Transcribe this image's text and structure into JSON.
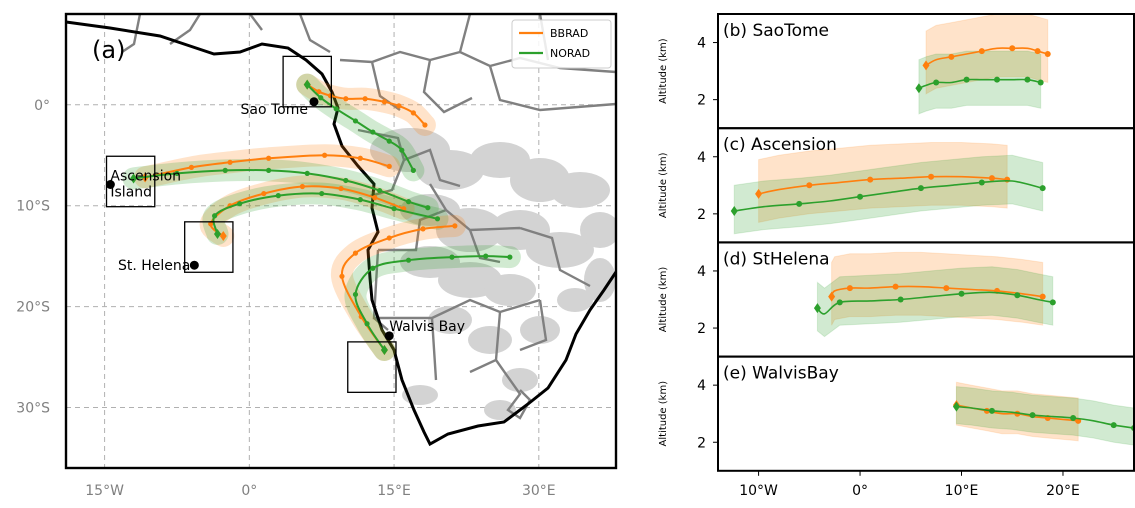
{
  "colors": {
    "bbrad": "#ff7f0e",
    "norad": "#2ca02c",
    "land": "#ffffff",
    "coast": "#000000",
    "border": "#808080",
    "cloud": "#d3d3d3",
    "grid": "#b0b0b0",
    "map_tick_label": "#808080"
  },
  "chart_data": [
    {
      "type": "map",
      "panel_label": "(a)",
      "x_ticks": [
        -15,
        0,
        15,
        30
      ],
      "x_tick_labels": [
        "15°W",
        "0°",
        "15°E",
        "30°E"
      ],
      "y_ticks": [
        0,
        -10,
        -20,
        -30
      ],
      "y_tick_labels": [
        "0°",
        "10°S",
        "20°S",
        "30°S"
      ],
      "xlim": [
        -19,
        38
      ],
      "ylim": [
        -36,
        9
      ],
      "grid": true,
      "legend": {
        "position": "top-right",
        "entries": [
          {
            "name": "BBRAD",
            "color": "#ff7f0e"
          },
          {
            "name": "NORAD",
            "color": "#2ca02c"
          }
        ]
      },
      "sites": [
        {
          "name": "Sao Tome",
          "lon": 6.7,
          "lat": 0.3
        },
        {
          "name": "Ascension Island",
          "lon": -14.4,
          "lat": -7.9
        },
        {
          "name": "St. Helena",
          "lon": -5.7,
          "lat": -15.9
        },
        {
          "name": "Walvis Bay",
          "lon": 14.5,
          "lat": -22.9
        }
      ],
      "boxes": [
        {
          "lon": [
            3.5,
            8.5
          ],
          "lat": [
            -0.2,
            4.8
          ]
        },
        {
          "lon": [
            -14.8,
            -9.8
          ],
          "lat": [
            -10.1,
            -5.1
          ]
        },
        {
          "lon": [
            -6.7,
            -1.7
          ],
          "lat": [
            -16.6,
            -11.6
          ]
        },
        {
          "lon": [
            10.2,
            15.2
          ],
          "lat": [
            -28.5,
            -23.5
          ]
        }
      ],
      "series": [
        {
          "name": "BBRAD",
          "site": "Sao Tome",
          "points": [
            [
              6.0,
              2.0
            ],
            [
              7.2,
              1.3
            ],
            [
              8.4,
              0.9
            ],
            [
              10.0,
              0.6
            ],
            [
              12.0,
              0.6
            ],
            [
              14.0,
              0.3
            ],
            [
              15.5,
              -0.1
            ],
            [
              17.0,
              -0.8
            ],
            [
              18.2,
              -2.0
            ]
          ]
        },
        {
          "name": "NORAD",
          "site": "Sao Tome",
          "points": [
            [
              6.0,
              2.0
            ],
            [
              7.4,
              0.7
            ],
            [
              9.0,
              -0.4
            ],
            [
              11.0,
              -1.6
            ],
            [
              12.8,
              -2.7
            ],
            [
              14.5,
              -3.6
            ],
            [
              15.8,
              -4.5
            ],
            [
              17.0,
              -6.5
            ]
          ]
        },
        {
          "name": "BBRAD",
          "site": "Ascension",
          "points": [
            [
              -10.8,
              -7.2
            ],
            [
              -6.0,
              -6.2
            ],
            [
              -2.0,
              -5.7
            ],
            [
              2.0,
              -5.3
            ],
            [
              7.8,
              -5.0
            ],
            [
              11.5,
              -5.3
            ],
            [
              14.5,
              -6.1
            ]
          ]
        },
        {
          "name": "NORAD",
          "site": "Ascension",
          "points": [
            [
              -12.0,
              -7.3
            ],
            [
              -7.5,
              -6.8
            ],
            [
              -2.5,
              -6.5
            ],
            [
              2.0,
              -6.5
            ],
            [
              6.0,
              -6.8
            ],
            [
              10.0,
              -7.5
            ],
            [
              13.5,
              -8.5
            ],
            [
              16.5,
              -9.6
            ],
            [
              18.5,
              -10.2
            ]
          ]
        },
        {
          "name": "BBRAD",
          "site": "St. Helena",
          "points": [
            [
              -2.7,
              -13.0
            ],
            [
              -4.0,
              -11.8
            ],
            [
              -2.0,
              -10.0
            ],
            [
              1.5,
              -8.8
            ],
            [
              5.5,
              -8.1
            ],
            [
              9.5,
              -8.3
            ],
            [
              13.0,
              -9.2
            ],
            [
              16.0,
              -10.3
            ]
          ]
        },
        {
          "name": "NORAD",
          "site": "St. Helena",
          "points": [
            [
              -3.3,
              -12.8
            ],
            [
              -3.6,
              -11.0
            ],
            [
              -1.0,
              -9.8
            ],
            [
              3.0,
              -9.0
            ],
            [
              7.5,
              -8.8
            ],
            [
              11.5,
              -9.4
            ],
            [
              15.0,
              -10.3
            ],
            [
              19.5,
              -11.3
            ]
          ]
        },
        {
          "name": "BBRAD",
          "site": "Walvis Bay",
          "points": [
            [
              14.0,
              -24.3
            ],
            [
              11.6,
              -21.0
            ],
            [
              9.6,
              -17.0
            ],
            [
              11.0,
              -14.7
            ],
            [
              14.5,
              -13.2
            ],
            [
              18.0,
              -12.3
            ],
            [
              21.3,
              -12.0
            ]
          ]
        },
        {
          "name": "NORAD",
          "site": "Walvis Bay",
          "points": [
            [
              14.0,
              -24.3
            ],
            [
              12.2,
              -21.7
            ],
            [
              11.0,
              -18.8
            ],
            [
              12.8,
              -16.2
            ],
            [
              16.5,
              -15.4
            ],
            [
              21.0,
              -15.1
            ],
            [
              24.5,
              -15.0
            ],
            [
              27.0,
              -15.1
            ]
          ]
        }
      ]
    },
    {
      "type": "line",
      "panel_label": "(b) SaoTome",
      "ylabel": "Altitude (km)",
      "ylim": [
        1,
        5
      ],
      "y_ticks": [
        2,
        4
      ],
      "xlim": [
        -14,
        27
      ],
      "series": [
        {
          "name": "BBRAD",
          "x": [
            6.5,
            7.5,
            9.0,
            10.5,
            12.0,
            13.5,
            15.0,
            16.5,
            17.5,
            18.5
          ],
          "y": [
            3.2,
            3.4,
            3.5,
            3.6,
            3.7,
            3.8,
            3.8,
            3.8,
            3.7,
            3.6
          ],
          "band": [
            1.2,
            1.0
          ]
        },
        {
          "name": "NORAD",
          "x": [
            5.8,
            6.5,
            7.5,
            9.0,
            10.5,
            12.0,
            13.5,
            15.0,
            16.5,
            17.8
          ],
          "y": [
            2.4,
            2.5,
            2.6,
            2.6,
            2.7,
            2.7,
            2.7,
            2.7,
            2.7,
            2.6
          ],
          "band": [
            1.0,
            0.9
          ]
        }
      ]
    },
    {
      "type": "line",
      "panel_label": "(c) Ascension",
      "ylabel": "Altitude (km)",
      "ylim": [
        1,
        5
      ],
      "y_ticks": [
        2,
        4
      ],
      "xlim": [
        -14,
        27
      ],
      "series": [
        {
          "name": "BBRAD",
          "x": [
            -10,
            -8,
            -5,
            -2,
            1,
            4,
            7,
            10,
            13,
            14.5
          ],
          "y": [
            2.7,
            2.85,
            3.0,
            3.1,
            3.2,
            3.25,
            3.3,
            3.3,
            3.25,
            3.2
          ],
          "band": [
            1.2,
            1.0
          ]
        },
        {
          "name": "NORAD",
          "x": [
            -12.4,
            -9.5,
            -6,
            -3,
            0,
            3,
            6,
            9,
            12,
            15,
            18
          ],
          "y": [
            2.1,
            2.25,
            2.35,
            2.45,
            2.6,
            2.75,
            2.9,
            3.0,
            3.1,
            3.15,
            2.9
          ],
          "band": [
            0.9,
            0.8
          ]
        }
      ]
    },
    {
      "type": "line",
      "panel_label": "(d) StHelena",
      "ylabel": "Altitude (km)",
      "ylim": [
        1,
        5
      ],
      "y_ticks": [
        2,
        4
      ],
      "xlim": [
        -14,
        27
      ],
      "series": [
        {
          "name": "BBRAD",
          "x": [
            -2.8,
            -2.5,
            -1,
            1,
            3.5,
            6,
            8.5,
            11,
            13.5,
            16,
            18
          ],
          "y": [
            3.1,
            3.3,
            3.4,
            3.4,
            3.45,
            3.45,
            3.4,
            3.35,
            3.3,
            3.2,
            3.1
          ],
          "band": [
            1.2,
            1.0
          ]
        },
        {
          "name": "NORAD",
          "x": [
            -4.2,
            -3.5,
            -2,
            1,
            4,
            7,
            10,
            13,
            15.5,
            17.5,
            19
          ],
          "y": [
            2.7,
            2.5,
            2.9,
            2.95,
            3.0,
            3.1,
            3.2,
            3.25,
            3.15,
            3.0,
            2.9
          ],
          "band": [
            0.9,
            0.8
          ]
        }
      ]
    },
    {
      "type": "line",
      "panel_label": "(e) WalvisBay",
      "ylabel": "Altitude (km)",
      "ylim": [
        1,
        5
      ],
      "y_ticks": [
        2,
        4
      ],
      "xlim": [
        -14,
        27
      ],
      "x_ticks": [
        -10,
        0,
        10,
        20
      ],
      "x_tick_labels": [
        "10$^\\circ$W",
        "0$^\\circ$",
        "10$^\\circ$E",
        "20$^\\circ$E"
      ],
      "x_tick_display": [
        "10°W",
        "0°",
        "10°E",
        "20°E"
      ],
      "series": [
        {
          "name": "BBRAD",
          "x": [
            9.5,
            11,
            12.5,
            14,
            15.5,
            17,
            18.5,
            20,
            21.5
          ],
          "y": [
            3.3,
            3.2,
            3.1,
            3.0,
            3.0,
            2.9,
            2.85,
            2.8,
            2.75
          ],
          "band": [
            0.8,
            0.7
          ]
        },
        {
          "name": "NORAD",
          "x": [
            9.5,
            11,
            13,
            15,
            17,
            19,
            21,
            23,
            25,
            27
          ],
          "y": [
            3.25,
            3.2,
            3.1,
            3.05,
            2.95,
            2.9,
            2.85,
            2.75,
            2.6,
            2.5
          ],
          "band": [
            0.7,
            0.6
          ]
        }
      ]
    }
  ]
}
